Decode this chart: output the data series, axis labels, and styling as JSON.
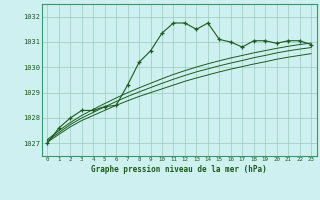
{
  "title": "Graphe pression niveau de la mer (hPa)",
  "bg_color": "#cff0f0",
  "grid_color": "#99ccbb",
  "line_color": "#1a5c1a",
  "border_color": "#339966",
  "xlim": [
    -0.5,
    23.5
  ],
  "ylim": [
    1026.5,
    1032.5
  ],
  "yticks": [
    1027,
    1028,
    1029,
    1030,
    1031,
    1032
  ],
  "xticks": [
    0,
    1,
    2,
    3,
    4,
    5,
    6,
    7,
    8,
    9,
    10,
    11,
    12,
    13,
    14,
    15,
    16,
    17,
    18,
    19,
    20,
    21,
    22,
    23
  ],
  "main_series": [
    1027.0,
    1027.6,
    1028.0,
    1028.3,
    1028.3,
    1028.45,
    1028.5,
    1029.3,
    1030.2,
    1030.65,
    1031.35,
    1031.75,
    1031.75,
    1031.5,
    1031.75,
    1031.1,
    1031.0,
    1030.8,
    1031.05,
    1031.05,
    1030.95,
    1031.05,
    1031.05,
    1030.9
  ],
  "smooth1": [
    1027.05,
    1027.35,
    1027.65,
    1027.9,
    1028.1,
    1028.3,
    1028.5,
    1028.68,
    1028.85,
    1029.0,
    1029.15,
    1029.3,
    1029.45,
    1029.58,
    1029.7,
    1029.82,
    1029.93,
    1030.03,
    1030.13,
    1030.22,
    1030.32,
    1030.4,
    1030.47,
    1030.54
  ],
  "smooth2": [
    1027.1,
    1027.42,
    1027.74,
    1028.0,
    1028.22,
    1028.44,
    1028.65,
    1028.85,
    1029.03,
    1029.2,
    1029.37,
    1029.53,
    1029.68,
    1029.82,
    1029.94,
    1030.06,
    1030.17,
    1030.27,
    1030.38,
    1030.47,
    1030.57,
    1030.65,
    1030.72,
    1030.78
  ],
  "smooth3": [
    1027.15,
    1027.5,
    1027.82,
    1028.1,
    1028.34,
    1028.57,
    1028.79,
    1029.0,
    1029.19,
    1029.37,
    1029.55,
    1029.72,
    1029.87,
    1030.01,
    1030.14,
    1030.26,
    1030.37,
    1030.47,
    1030.57,
    1030.66,
    1030.75,
    1030.83,
    1030.9,
    1030.96
  ]
}
